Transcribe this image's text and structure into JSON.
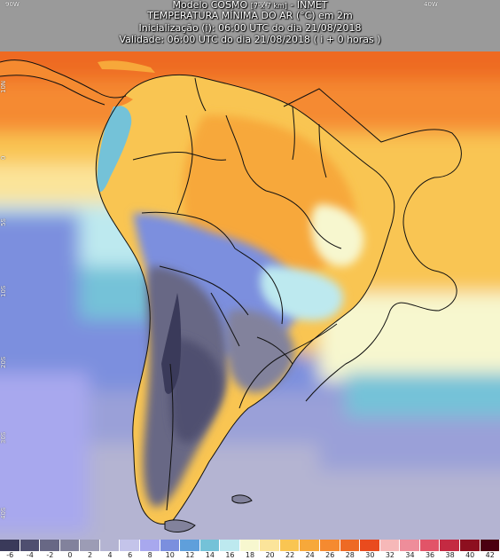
{
  "header": {
    "model_name": "Modelo COSMO",
    "model_res": "[7 x 7 km]",
    "model_org": " - INMET",
    "variable": "TEMPERATURA MÍNIMA DO AR (°C) em 2m",
    "init": "Inicialização (i): 06:00 UTC do dia 21/08/2018",
    "valid": "Validade: 06:00 UTC do dia 21/08/2018 ( i + 0 horas )"
  },
  "grid_labels": {
    "top": [
      "90W",
      "60W",
      "40W"
    ],
    "side": [
      "10N",
      "0",
      "5S",
      "10S",
      "20S",
      "30S",
      "40S"
    ]
  },
  "colors": {
    "ocean_lines": "#111111",
    "land_gray": "#9a9a9a"
  },
  "legend": {
    "labels": [
      "-6",
      "-4",
      "-2",
      "0",
      "2",
      "4",
      "6",
      "8",
      "10",
      "12",
      "14",
      "16",
      "18",
      "20",
      "22",
      "24",
      "26",
      "28",
      "30",
      "32",
      "34",
      "36",
      "38",
      "40",
      "42"
    ],
    "colors": [
      "#3a3a5a",
      "#4f4f70",
      "#686885",
      "#82829c",
      "#9c9cb5",
      "#b4b4d2",
      "#c4c4ea",
      "#a8a8ee",
      "#7b8fde",
      "#5f9fdb",
      "#74c2d8",
      "#bde9ef",
      "#f7f7cf",
      "#fbe49a",
      "#f9c552",
      "#f7a83a",
      "#f58a30",
      "#ee6a24",
      "#e94b1e",
      "#f6b8b8",
      "#ee8d9a",
      "#e25468",
      "#c42a42",
      "#8d0f1f",
      "#4b0010"
    ]
  }
}
